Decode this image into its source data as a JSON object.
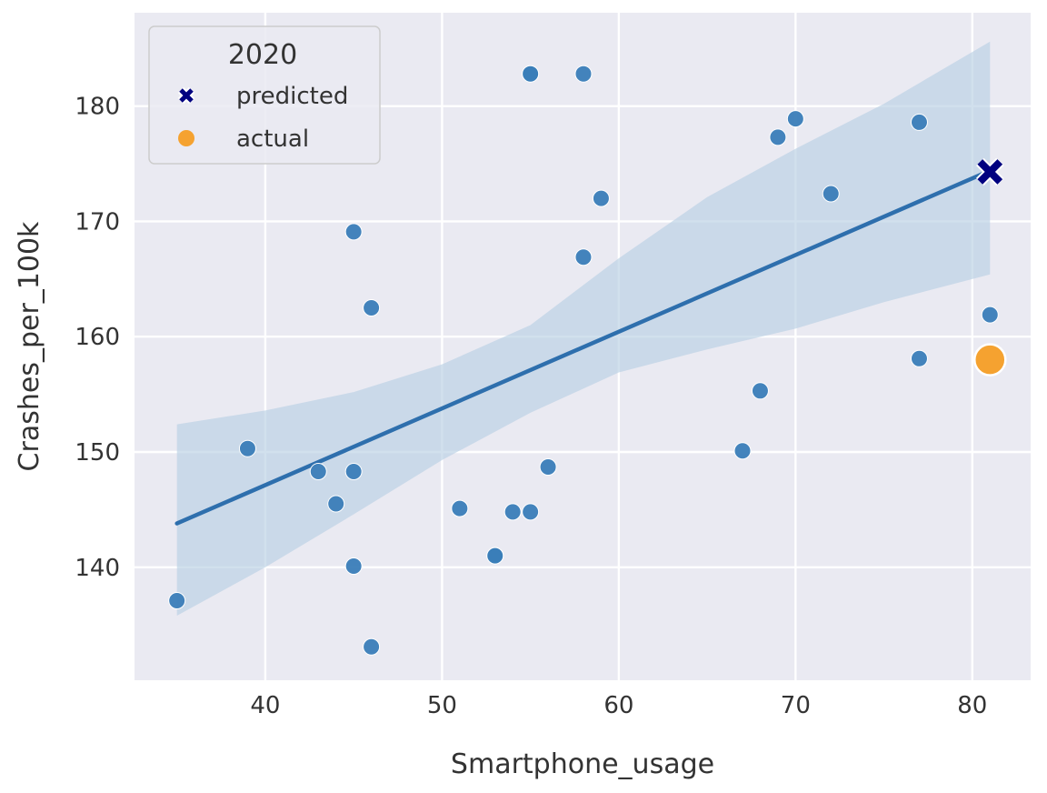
{
  "chart_data": {
    "type": "scatter",
    "title": "",
    "xlabel": "Smartphone_usage",
    "ylabel": "Crashes_per_100k",
    "xlim": [
      32.6,
      83.3
    ],
    "ylim": [
      130.2,
      188.1
    ],
    "xticks": [
      40,
      50,
      60,
      70,
      80
    ],
    "yticks": [
      140,
      150,
      160,
      170,
      180
    ],
    "grid": true,
    "colors": {
      "background": "#eaeaf2",
      "grid": "#ffffff",
      "points": "#3a7db8",
      "regression": "#2e6fad",
      "ci_band": "#b8cfe4",
      "predicted": "#000080",
      "actual": "#f5a230"
    },
    "series": [
      {
        "name": "observations",
        "points": [
          {
            "x": 35,
            "y": 137.1
          },
          {
            "x": 39,
            "y": 150.3
          },
          {
            "x": 43,
            "y": 148.3
          },
          {
            "x": 44,
            "y": 145.5
          },
          {
            "x": 45,
            "y": 148.3
          },
          {
            "x": 45,
            "y": 140.1
          },
          {
            "x": 45,
            "y": 169.1
          },
          {
            "x": 46,
            "y": 162.5
          },
          {
            "x": 46,
            "y": 133.1
          },
          {
            "x": 51,
            "y": 145.1
          },
          {
            "x": 53,
            "y": 141.0
          },
          {
            "x": 53,
            "y": 141.0
          },
          {
            "x": 54,
            "y": 144.8
          },
          {
            "x": 55,
            "y": 144.8
          },
          {
            "x": 55,
            "y": 182.8
          },
          {
            "x": 55,
            "y": 182.8
          },
          {
            "x": 56,
            "y": 148.7
          },
          {
            "x": 58,
            "y": 182.8
          },
          {
            "x": 58,
            "y": 166.9
          },
          {
            "x": 59,
            "y": 172.0
          },
          {
            "x": 67,
            "y": 150.1
          },
          {
            "x": 68,
            "y": 155.3
          },
          {
            "x": 69,
            "y": 177.3
          },
          {
            "x": 70,
            "y": 178.9
          },
          {
            "x": 72,
            "y": 172.4
          },
          {
            "x": 77,
            "y": 178.6
          },
          {
            "x": 77,
            "y": 158.1
          },
          {
            "x": 81,
            "y": 161.9
          }
        ]
      }
    ],
    "regression": {
      "x": [
        35,
        81
      ],
      "y": [
        143.8,
        174.4
      ],
      "ci_upper": [
        {
          "x": 35,
          "y": 152.4
        },
        {
          "x": 40,
          "y": 153.6
        },
        {
          "x": 45,
          "y": 155.2
        },
        {
          "x": 50,
          "y": 157.6
        },
        {
          "x": 55,
          "y": 161.0
        },
        {
          "x": 60,
          "y": 166.8
        },
        {
          "x": 65,
          "y": 172.1
        },
        {
          "x": 70,
          "y": 176.3
        },
        {
          "x": 75,
          "y": 180.2
        },
        {
          "x": 81,
          "y": 185.6
        }
      ],
      "ci_lower": [
        {
          "x": 35,
          "y": 135.8
        },
        {
          "x": 40,
          "y": 140.0
        },
        {
          "x": 45,
          "y": 144.6
        },
        {
          "x": 50,
          "y": 149.3
        },
        {
          "x": 55,
          "y": 153.4
        },
        {
          "x": 60,
          "y": 156.9
        },
        {
          "x": 65,
          "y": 158.9
        },
        {
          "x": 70,
          "y": 160.7
        },
        {
          "x": 75,
          "y": 163.0
        },
        {
          "x": 81,
          "y": 165.4
        }
      ]
    },
    "highlights": {
      "predicted": {
        "x": 81,
        "y": 174.3
      },
      "actual": {
        "x": 81,
        "y": 158.0
      }
    },
    "legend": {
      "title": "2020",
      "position": "top-left",
      "entries": [
        {
          "label": "predicted",
          "marker": "x"
        },
        {
          "label": "actual",
          "marker": "circle"
        }
      ]
    }
  }
}
